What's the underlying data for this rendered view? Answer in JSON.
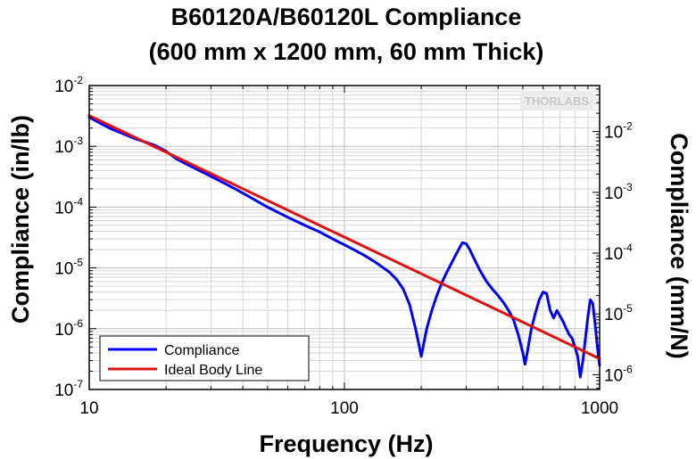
{
  "chart_data": {
    "type": "line",
    "title": [
      "B60120A/B60120L Compliance",
      "(600 mm x 1200 mm, 60 mm Thick)"
    ],
    "xlabel": "Frequency (Hz)",
    "ylabel": "Compliance (in/lb)",
    "y2label": "Compliance (mm/N)",
    "x_scale": "log",
    "y_scale": "log",
    "xlim": [
      10,
      1000
    ],
    "ylim": [
      1e-07,
      0.01
    ],
    "y2lim": [
      5.71e-07,
      0.0571
    ],
    "grid": true,
    "legend_position": "bottom-left",
    "x_ticks": [
      {
        "value": 10,
        "label": "10"
      },
      {
        "value": 100,
        "label": "100"
      },
      {
        "value": 1000,
        "label": "1000"
      }
    ],
    "y_ticks": [
      {
        "value": 0.01,
        "base": "10",
        "exp": "-2"
      },
      {
        "value": 0.001,
        "base": "10",
        "exp": "-3"
      },
      {
        "value": 0.0001,
        "base": "10",
        "exp": "-4"
      },
      {
        "value": 1e-05,
        "base": "10",
        "exp": "-5"
      },
      {
        "value": 1e-06,
        "base": "10",
        "exp": "-6"
      },
      {
        "value": 1e-07,
        "base": "10",
        "exp": "-7"
      }
    ],
    "y2_ticks": [
      {
        "value": 0.01,
        "base": "10",
        "exp": "-2"
      },
      {
        "value": 0.001,
        "base": "10",
        "exp": "-3"
      },
      {
        "value": 0.0001,
        "base": "10",
        "exp": "-4"
      },
      {
        "value": 1e-05,
        "base": "10",
        "exp": "-5"
      },
      {
        "value": 1e-06,
        "base": "10",
        "exp": "-6"
      }
    ],
    "series": [
      {
        "name": "Compliance",
        "color": "#0000ff",
        "x": [
          10,
          12,
          15,
          18,
          20,
          22,
          25,
          30,
          35,
          40,
          50,
          60,
          70,
          80,
          90,
          100,
          110,
          120,
          130,
          140,
          150,
          160,
          170,
          180,
          190,
          195,
          200,
          205,
          210,
          220,
          230,
          240,
          250,
          260,
          270,
          280,
          290,
          300,
          310,
          320,
          340,
          360,
          380,
          400,
          420,
          440,
          460,
          480,
          500,
          510,
          520,
          540,
          560,
          580,
          600,
          620,
          640,
          660,
          680,
          700,
          720,
          740,
          760,
          780,
          800,
          820,
          840,
          860,
          880,
          900,
          920,
          940,
          960,
          980,
          1000
        ],
        "y": [
          0.003,
          0.002,
          0.00135,
          0.00105,
          0.00083,
          0.00062,
          0.00047,
          0.00032,
          0.00023,
          0.00017,
          0.0001,
          6.8e-05,
          5e-05,
          3.9e-05,
          3e-05,
          2.4e-05,
          1.95e-05,
          1.6e-05,
          1.3e-05,
          1.05e-05,
          8.5e-06,
          6.5e-06,
          4.5e-06,
          2.5e-06,
          1e-06,
          6e-07,
          3.5e-07,
          6e-07,
          1e-06,
          2e-06,
          3.5e-06,
          5.5e-06,
          8e-06,
          1.1e-05,
          1.5e-05,
          2e-05,
          2.6e-05,
          2.5e-05,
          2e-05,
          1.5e-05,
          9e-06,
          6e-06,
          4.5e-06,
          3.5e-06,
          2.7e-06,
          2e-06,
          1.4e-06,
          8e-07,
          4e-07,
          2.6e-07,
          4e-07,
          1e-06,
          1.8e-06,
          3e-06,
          4e-06,
          3.8e-06,
          2e-06,
          1.5e-06,
          2e-06,
          1.6e-06,
          1.3e-06,
          1e-06,
          8e-07,
          7e-07,
          5e-07,
          3.5e-07,
          1.6e-07,
          3e-07,
          7e-07,
          1.6e-06,
          3e-06,
          2.6e-06,
          1.2e-06,
          5e-07,
          2.5e-07
        ]
      },
      {
        "name": "Ideal Body Line",
        "color": "#e01010",
        "x": [
          10,
          1000
        ],
        "y": [
          0.0032,
          3.2e-07
        ]
      }
    ]
  },
  "logo": "THORLABS"
}
